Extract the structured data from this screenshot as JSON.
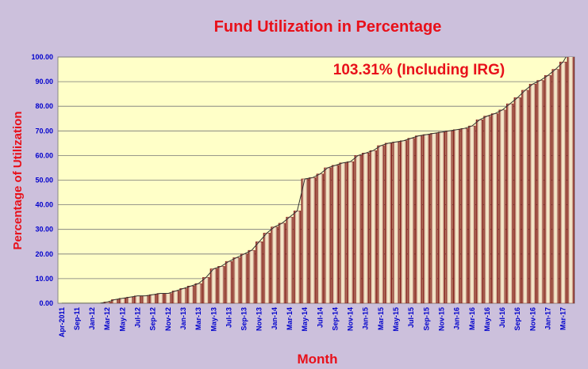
{
  "chart_data": {
    "type": "bar",
    "title": "Fund Utilization in Percentage",
    "xlabel": "Month",
    "ylabel": "Percentage of Utilization",
    "annotation": "103.31% (Including IRG)",
    "categories": [
      "Apr-2011",
      null,
      "Sep-11",
      null,
      "Jan-12",
      null,
      "Mar-12",
      null,
      "May-12",
      null,
      "Jul-12",
      null,
      "Sep-12",
      null,
      "Nov-12",
      null,
      "Jan-13",
      null,
      "Mar-13",
      null,
      "May-13",
      null,
      "Jul-13",
      null,
      "Sep-13",
      null,
      "Nov-13",
      null,
      "Jan-14",
      null,
      "Mar-14",
      null,
      "May-14",
      null,
      "Jul-14",
      null,
      "Sep-14",
      null,
      "Nov-14",
      null,
      "Jan-15",
      null,
      "Mar-15",
      null,
      "May-15",
      null,
      "Jul-15",
      null,
      "Sep-15",
      null,
      "Nov-15",
      null,
      "Jan-16",
      null,
      "Mar-16",
      null,
      "May-16",
      null,
      "Jul-16",
      null,
      "Sep-16",
      null,
      "Nov-16",
      null,
      "Jan-17",
      null,
      "Mar-17",
      null
    ],
    "values": [
      0,
      0,
      0,
      0,
      0,
      0,
      0.5,
      1.5,
      2,
      2.5,
      3,
      3,
      3.5,
      4,
      4,
      5,
      6,
      7,
      8,
      10.5,
      14,
      15,
      17,
      18.5,
      20,
      21.5,
      25,
      28.5,
      31,
      32.5,
      35,
      37.5,
      50.5,
      51,
      52.5,
      55,
      56,
      57,
      57.5,
      60,
      61,
      62,
      64,
      65,
      65.5,
      66,
      67,
      68,
      68.5,
      69,
      69.5,
      70,
      70.5,
      71,
      72,
      74.5,
      76,
      77,
      78.5,
      81,
      83.5,
      86.5,
      89,
      90.5,
      92.5,
      95,
      98,
      103.31
    ],
    "color": "#7a0f0f",
    "ylim": [
      0,
      100
    ],
    "yticks": [
      {
        "value": 0,
        "label": "0.00"
      },
      {
        "value": 10,
        "label": "10.00"
      },
      {
        "value": 20,
        "label": "20.00"
      },
      {
        "value": 30,
        "label": "30.00"
      },
      {
        "value": 40,
        "label": "40.00"
      },
      {
        "value": 50,
        "label": "50.00"
      },
      {
        "value": 60,
        "label": "60.00"
      },
      {
        "value": 70,
        "label": "70.00"
      },
      {
        "value": 80,
        "label": "80.00"
      },
      {
        "value": 90,
        "label": "90.00"
      },
      {
        "value": 100,
        "label": "100.00"
      }
    ],
    "grid": true
  }
}
